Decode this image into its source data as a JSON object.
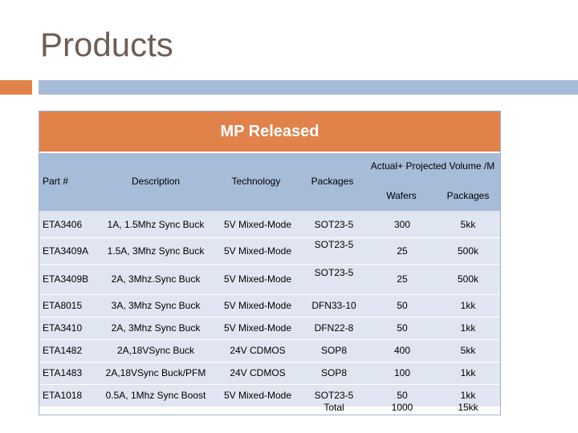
{
  "page": {
    "title": "Products"
  },
  "table": {
    "banner": "MP Released",
    "headers": {
      "part": "Part #",
      "description": "Description",
      "technology": "Technology",
      "packages": "Packages",
      "volume": "Actual+ Projected Volume /M",
      "wafers": "Wafers",
      "volume_packages": "Packages"
    },
    "rows": [
      {
        "part": "ETA3406",
        "description": "1A, 1.5Mhz Sync Buck",
        "technology": "5V Mixed-Mode",
        "package": "SOT23-5",
        "wafers": "300",
        "packages": "5kk"
      },
      {
        "part": "ETA3409A",
        "description": "1.5A, 3Mhz Sync Buck",
        "technology": "5V Mixed-Mode",
        "package": "SOT23-5",
        "wafers": "25",
        "packages": "500k"
      },
      {
        "part": "ETA3409B",
        "description": "2A, 3Mhz.Sync  Buck",
        "technology": "5V Mixed-Mode",
        "package": "SOT23-5",
        "wafers": "25",
        "packages": "500k"
      },
      {
        "part": "ETA8015",
        "description": "3A, 3Mhz Sync Buck",
        "technology": "5V Mixed-Mode",
        "package": "DFN33-10",
        "wafers": "50",
        "packages": "1kk"
      },
      {
        "part": "ETA3410",
        "description": "2A, 3Mhz Sync Buck",
        "technology": "5V Mixed-Mode",
        "package": "DFN22-8",
        "wafers": "50",
        "packages": "1kk"
      },
      {
        "part": "ETA1482",
        "description": "2A,18VSync  Buck",
        "technology": "24V CDMOS",
        "package": "SOP8",
        "wafers": "400",
        "packages": "5kk"
      },
      {
        "part": "ETA1483",
        "description": "2A,18VSync Buck/PFM",
        "technology": "24V CDMOS",
        "package": "SOP8",
        "wafers": "100",
        "packages": "1kk"
      },
      {
        "part": "ETA1018",
        "description": "0.5A, 1Mhz Sync Boost",
        "technology": "5V Mixed-Mode",
        "package": "SOT23-5",
        "wafers": "50",
        "packages": "1kk"
      }
    ],
    "total": {
      "label": "Total",
      "wafers": "1000",
      "packages": "15kk"
    }
  }
}
